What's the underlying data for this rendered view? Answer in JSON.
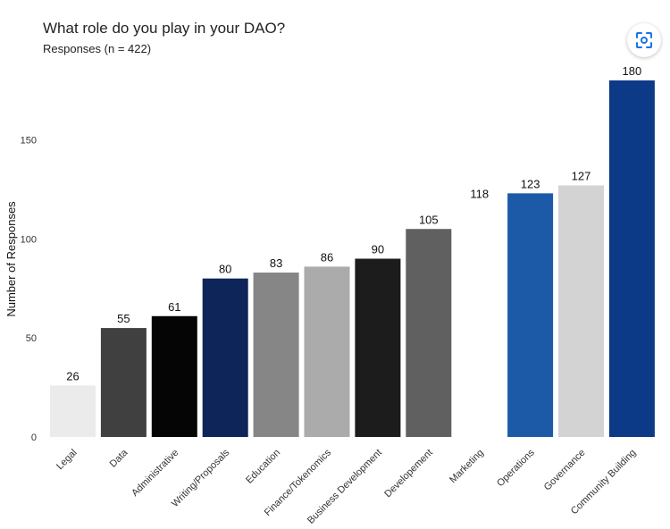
{
  "lens_button": {
    "icon": "lens-icon"
  },
  "chart_data": {
    "type": "bar",
    "title": "What role do you play in your DAO?",
    "subtitle": "Responses (n = 422)",
    "xlabel": "",
    "ylabel": "Number of Responses",
    "ylim": [
      0,
      180
    ],
    "yticks": [
      0,
      50,
      100,
      150
    ],
    "categories": [
      "Legal",
      "Data",
      "Administrative",
      "Writing/Proposals",
      "Education",
      "Finance/Tokenomics",
      "Business Development",
      "Developement",
      "Marketing",
      "Operations",
      "Governance",
      "Community Building"
    ],
    "values": [
      26,
      55,
      61,
      80,
      83,
      86,
      90,
      105,
      118,
      123,
      127,
      180
    ],
    "colors": [
      "#ebebeb",
      "#404040",
      "#050505",
      "#0d2559",
      "#868686",
      "#ababab",
      "#1c1c1c",
      "#606060",
      "#ffffff",
      "#1c5aa8",
      "#d3d3d3",
      "#0c3a87"
    ]
  }
}
